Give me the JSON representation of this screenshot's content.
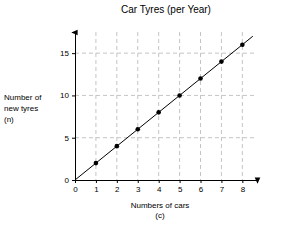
{
  "chart_data": {
    "type": "scatter",
    "title": "Car Tyres (per Year)",
    "x_label": [
      "Numbers of cars",
      "(c)"
    ],
    "y_label": [
      "Number of",
      "new tyres",
      "(n)"
    ],
    "series": [
      {
        "type": "line",
        "marker": "none",
        "color": "#000000",
        "x": [
          0,
          8.5
        ],
        "values": [
          0,
          17
        ]
      },
      {
        "type": "scatter",
        "marker": "circle",
        "color": "#000000",
        "x": [
          1,
          2,
          3,
          4,
          5,
          6,
          7,
          8
        ],
        "values": [
          2,
          4,
          6,
          8,
          10,
          12,
          14,
          16
        ]
      }
    ],
    "xlim": [
      0,
      8.7
    ],
    "xticks": [
      0,
      1,
      2,
      3,
      4,
      5,
      6,
      7,
      8
    ],
    "ylim": [
      0,
      17.5
    ],
    "yticks": [
      0,
      5,
      10,
      15
    ],
    "grid": true
  }
}
